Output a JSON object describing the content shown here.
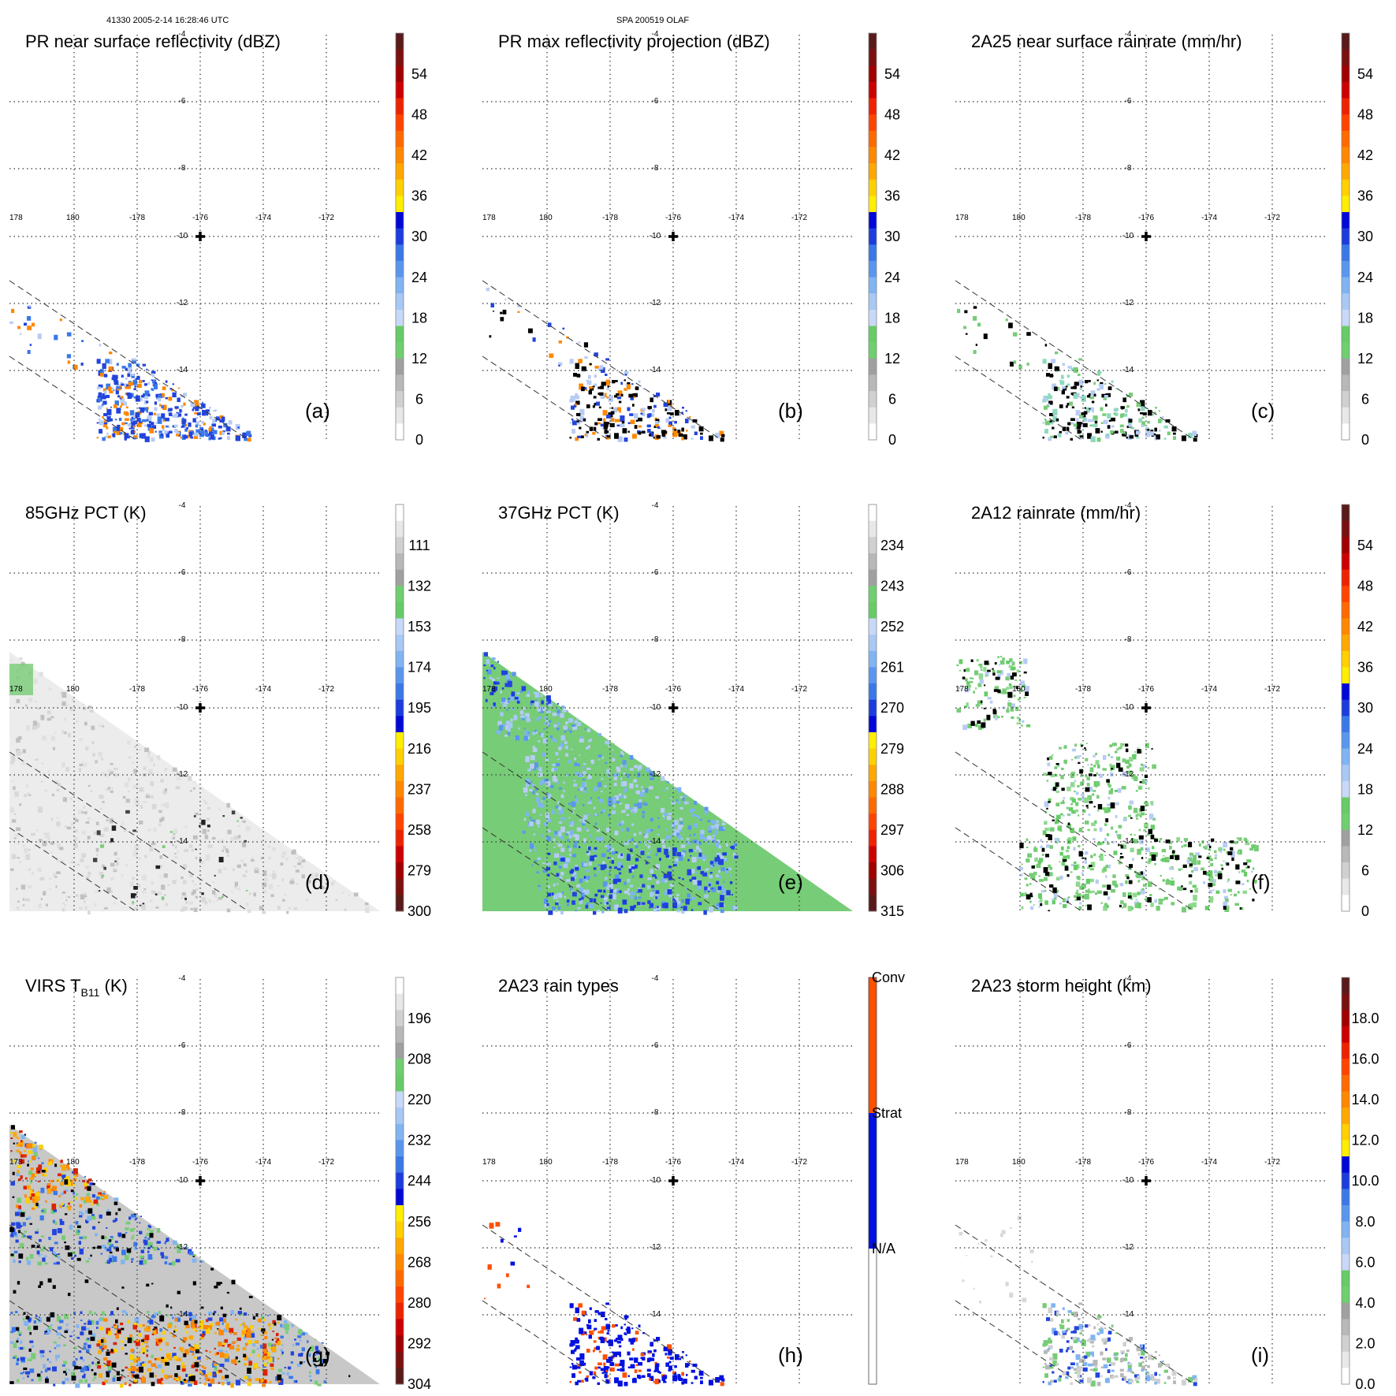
{
  "header": {
    "left": "41330 2005-2-14 16:28:46 UTC",
    "center": "SPA 200519 OLAF"
  },
  "colors": {
    "ramp": [
      "#ffffff",
      "#e8e8e8",
      "#d0d0d0",
      "#b8b8b8",
      "#a0a0a0",
      "#6fcf6f",
      "#66cc66",
      "#c8d8f8",
      "#a8c8f5",
      "#80b4f2",
      "#5a96ee",
      "#3a78e8",
      "#1c3cde",
      "#0008d8",
      "#ffee00",
      "#ffd000",
      "#ffa800",
      "#ff8800",
      "#ff6a00",
      "#ff4400",
      "#ee2200",
      "#cc0000",
      "#a00000",
      "#7a1010",
      "#5a1a1a"
    ],
    "pct_ramp": [
      "#5a1a1a",
      "#7a1010",
      "#a00000",
      "#cc0000",
      "#ee2200",
      "#ff4400",
      "#ff6a00",
      "#ff8800",
      "#ffa800",
      "#ffd000",
      "#ffee00",
      "#0008d8",
      "#1c3cde",
      "#3a78e8",
      "#5a96ee",
      "#80b4f2",
      "#a8c8f5",
      "#c8d8f8",
      "#66cc66",
      "#6fcf6f",
      "#a0a0a0",
      "#b8b8b8",
      "#d0d0d0",
      "#e8e8e8",
      "#ffffff"
    ],
    "conv": "#ff5000",
    "strat": "#0010e0",
    "na": "#ffffff",
    "green": "#77cc77",
    "lightblue": "#b8ccf4",
    "blue": "#2244dd",
    "orange": "#ff8800",
    "red": "#dd2200",
    "gray": "#c8c8c8"
  },
  "map": {
    "lon_labels": [
      "178",
      "180",
      "-178",
      "-176",
      "-174",
      "-172"
    ],
    "lat_labels": [
      "-4",
      "-6",
      "-8",
      "-10",
      "-12",
      "-14"
    ],
    "storm_center_marker": "plus-icon"
  },
  "chart_data": [
    {
      "type": "heatmap",
      "title": "PR near surface reflectivity (dBZ)",
      "label": "(a)",
      "colorbar_ticks": [
        "54",
        "48",
        "42",
        "36",
        "30",
        "24",
        "18",
        "12",
        "6",
        "0"
      ],
      "range": [
        0,
        60
      ]
    },
    {
      "type": "heatmap",
      "title": "PR max reflectivity projection (dBZ)",
      "label": "(b)",
      "colorbar_ticks": [
        "54",
        "48",
        "42",
        "36",
        "30",
        "24",
        "18",
        "12",
        "6",
        "0"
      ],
      "range": [
        0,
        60
      ]
    },
    {
      "type": "heatmap",
      "title": "2A25 near surface rainrate (mm/hr)",
      "label": "(c)",
      "colorbar_ticks": [
        "54",
        "48",
        "42",
        "36",
        "30",
        "24",
        "18",
        "12",
        "6",
        "0"
      ],
      "range": [
        0,
        60
      ]
    },
    {
      "type": "heatmap",
      "title": "85GHz PCT (K)",
      "label": "(d)",
      "colorbar_ticks": [
        "111",
        "132",
        "153",
        "174",
        "195",
        "216",
        "237",
        "258",
        "279",
        "300"
      ],
      "range": [
        90,
        300
      ]
    },
    {
      "type": "heatmap",
      "title": "37GHz PCT (K)",
      "label": "(e)",
      "colorbar_ticks": [
        "234",
        "243",
        "252",
        "261",
        "270",
        "279",
        "288",
        "297",
        "306",
        "315"
      ],
      "range": [
        225,
        315
      ]
    },
    {
      "type": "heatmap",
      "title": "2A12 rainrate (mm/hr)",
      "label": "(f)",
      "colorbar_ticks": [
        "54",
        "48",
        "42",
        "36",
        "30",
        "24",
        "18",
        "12",
        "6",
        "0"
      ],
      "range": [
        0,
        60
      ]
    },
    {
      "type": "heatmap",
      "title": "VIRS T",
      "title_sub": "B11",
      "title_suffix": " (K)",
      "label": "(g)",
      "colorbar_ticks": [
        "196",
        "208",
        "220",
        "232",
        "244",
        "256",
        "268",
        "280",
        "292",
        "304"
      ],
      "range": [
        184,
        304
      ]
    },
    {
      "type": "heatmap",
      "title": "2A23 rain types",
      "label": "(h)",
      "colorbar_ticks": [
        "Conv",
        "Strat",
        "N/A"
      ],
      "categories": [
        "Conv",
        "Strat",
        "N/A"
      ]
    },
    {
      "type": "heatmap",
      "title": "2A23 storm height (km)",
      "label": "(i)",
      "colorbar_ticks": [
        "18.0",
        "16.0",
        "14.0",
        "12.0",
        "10.0",
        "8.0",
        "6.0",
        "4.0",
        "2.0",
        "0.0"
      ],
      "range": [
        0,
        20
      ]
    }
  ]
}
